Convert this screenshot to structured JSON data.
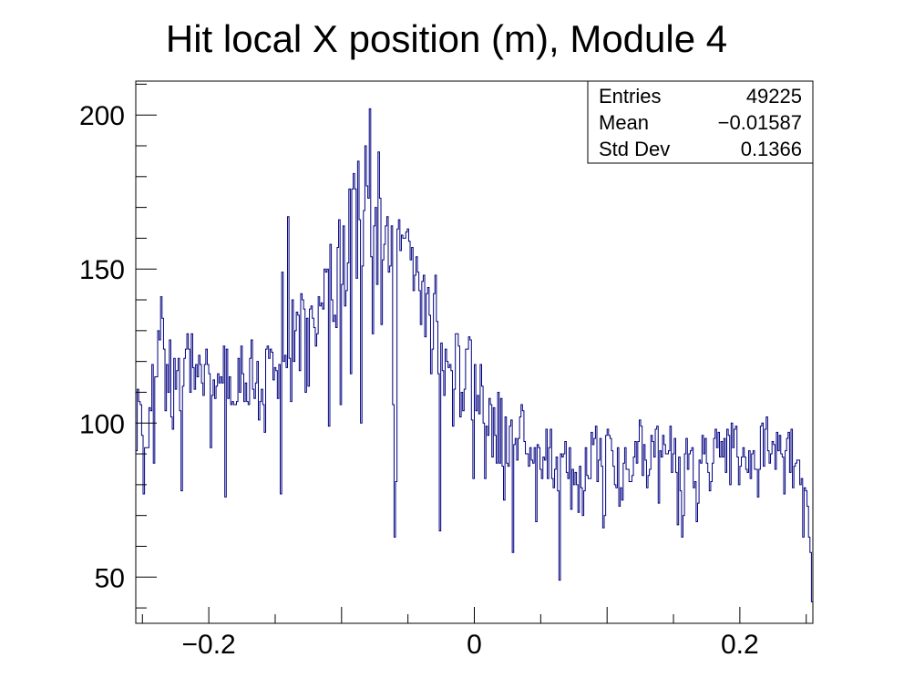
{
  "chart_data": {
    "type": "histogram",
    "title": "Hit local X position (m), Module 4",
    "xlabel": "",
    "ylabel": "",
    "xlim": [
      -0.255,
      0.255
    ],
    "ylim": [
      35,
      211
    ],
    "x_ticks": [
      {
        "value": -0.2,
        "label": "−0.2"
      },
      {
        "value": 0,
        "label": "0"
      },
      {
        "value": 0.2,
        "label": "0.2"
      }
    ],
    "y_ticks": [
      {
        "value": 50,
        "label": "50"
      },
      {
        "value": 100,
        "label": "100"
      },
      {
        "value": 150,
        "label": "150"
      },
      {
        "value": 200,
        "label": "200"
      }
    ],
    "line_color": "#000080",
    "bin_width": 0.00204,
    "counts": [
      91,
      111,
      107,
      106,
      96,
      77,
      92,
      92,
      92,
      105,
      104,
      119,
      87,
      115,
      115,
      130,
      127,
      141,
      134,
      124,
      104,
      119,
      110,
      127,
      102,
      98,
      121,
      111,
      117,
      121,
      104,
      78,
      112,
      121,
      124,
      129,
      124,
      110,
      129,
      118,
      111,
      119,
      115,
      122,
      119,
      113,
      109,
      119,
      124,
      119,
      116,
      92,
      109,
      114,
      108,
      112,
      116,
      113,
      115,
      113,
      125,
      76,
      124,
      108,
      115,
      106,
      107,
      106,
      106,
      107,
      121,
      110,
      125,
      116,
      107,
      113,
      107,
      106,
      121,
      127,
      111,
      108,
      113,
      120,
      101,
      107,
      111,
      106,
      97,
      124,
      125,
      121,
      124,
      123,
      114,
      118,
      117,
      108,
      119,
      77,
      149,
      120,
      122,
      118,
      167,
      121,
      107,
      140,
      120,
      130,
      136,
      135,
      117,
      142,
      140,
      137,
      110,
      134,
      112,
      137,
      138,
      134,
      131,
      125,
      129,
      141,
      138,
      139,
      137,
      150,
      149,
      150,
      99,
      158,
      140,
      133,
      135,
      131,
      157,
      166,
      106,
      145,
      164,
      138,
      143,
      152,
      176,
      116,
      176,
      181,
      176,
      147,
      185,
      166,
      100,
      151,
      169,
      190,
      177,
      173,
      202,
      154,
      129,
      164,
      170,
      145,
      188,
      173,
      132,
      153,
      158,
      164,
      167,
      149,
      151,
      164,
      106,
      63,
      81,
      163,
      166,
      156,
      161,
      160,
      160,
      162,
      163,
      159,
      153,
      157,
      143,
      148,
      154,
      149,
      143,
      132,
      146,
      148,
      128,
      142,
      144,
      135,
      116,
      124,
      142,
      148,
      133,
      116,
      65,
      126,
      117,
      109,
      124,
      120,
      118,
      119,
      117,
      99,
      111,
      129,
      129,
      125,
      102,
      110,
      104,
      111,
      124,
      124,
      128,
      127,
      101,
      82,
      119,
      104,
      109,
      103,
      119,
      112,
      100,
      82,
      99,
      96,
      108,
      106,
      89,
      105,
      96,
      87,
      110,
      87,
      108,
      86,
      75,
      102,
      87,
      86,
      99,
      101,
      58,
      93,
      95,
      88,
      95,
      102,
      106,
      104,
      94,
      90,
      90,
      86,
      92,
      88,
      87,
      92,
      68,
      93,
      92,
      85,
      82,
      89,
      88,
      98,
      82,
      92,
      98,
      82,
      79,
      85,
      89,
      78,
      49,
      90,
      89,
      90,
      94,
      84,
      82,
      92,
      72,
      85,
      80,
      84,
      80,
      71,
      86,
      79,
      70,
      78,
      92,
      83,
      82,
      82,
      97,
      93,
      95,
      99,
      81,
      88,
      95,
      86,
      66,
      70,
      96,
      98,
      96,
      95,
      91,
      86,
      80,
      79,
      92,
      73,
      79,
      75,
      87,
      92,
      85,
      85,
      81,
      81,
      83,
      89,
      94,
      87,
      94,
      101,
      99,
      83,
      93,
      88,
      79,
      83,
      85,
      96,
      94,
      89,
      98,
      99,
      74,
      91,
      89,
      96,
      93,
      90,
      90,
      91,
      99,
      84,
      90,
      95,
      84,
      67,
      89,
      78,
      63,
      70,
      90,
      95,
      85,
      90,
      91,
      92,
      79,
      81,
      68,
      74,
      88,
      87,
      96,
      90,
      95,
      87,
      84,
      78,
      81,
      87,
      95,
      98,
      92,
      97,
      89,
      94,
      89,
      95,
      84,
      98,
      96,
      80,
      100,
      92,
      98,
      99,
      89,
      80,
      86,
      89,
      92,
      89,
      85,
      84,
      91,
      82,
      90,
      91,
      85,
      85,
      76,
      85,
      99,
      100,
      86,
      98,
      102,
      91,
      87,
      90,
      94,
      93,
      85,
      97,
      91,
      96,
      90,
      89,
      77,
      91,
      95,
      97,
      84,
      98,
      79,
      86,
      87,
      88,
      88,
      80,
      82,
      63,
      79,
      78,
      73,
      63,
      58,
      42
    ],
    "stats_box": {
      "rows": [
        {
          "label": "Entries",
          "value": "49225"
        },
        {
          "label": "Mean",
          "value": "−0.01587"
        },
        {
          "label": "Std Dev",
          "value": "0.1366"
        }
      ]
    }
  }
}
